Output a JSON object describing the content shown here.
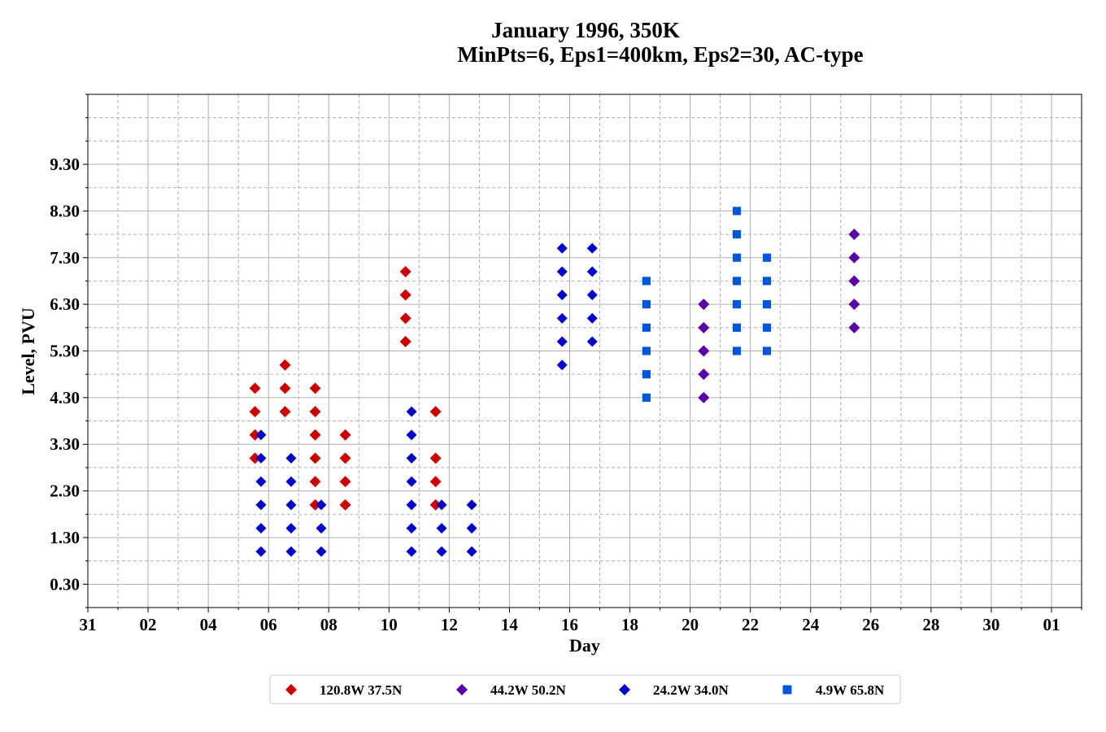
{
  "chart_data": {
    "type": "scatter",
    "title_lines": [
      "January 1996, 350K",
      "MinPts=6, Eps1=400km, Eps2=30, AC-type"
    ],
    "xlabel": "Day",
    "ylabel": "Level, PVU",
    "x_ticks": [
      {
        "day": 0,
        "label": "31"
      },
      {
        "day": 2,
        "label": "02"
      },
      {
        "day": 4,
        "label": "04"
      },
      {
        "day": 6,
        "label": "06"
      },
      {
        "day": 8,
        "label": "08"
      },
      {
        "day": 10,
        "label": "10"
      },
      {
        "day": 12,
        "label": "12"
      },
      {
        "day": 14,
        "label": "14"
      },
      {
        "day": 16,
        "label": "16"
      },
      {
        "day": 18,
        "label": "18"
      },
      {
        "day": 20,
        "label": "20"
      },
      {
        "day": 22,
        "label": "22"
      },
      {
        "day": 24,
        "label": "24"
      },
      {
        "day": 26,
        "label": "26"
      },
      {
        "day": 28,
        "label": "28"
      },
      {
        "day": 30,
        "label": "30"
      },
      {
        "day": 32,
        "label": "01"
      }
    ],
    "y_ticks": [
      0.3,
      1.3,
      2.3,
      3.3,
      4.3,
      5.3,
      6.3,
      7.3,
      8.3,
      9.3
    ],
    "y_tick_labels": [
      "0.30",
      "1.30",
      "2.30",
      "3.30",
      "4.30",
      "5.30",
      "6.30",
      "7.30",
      "8.30",
      "9.30"
    ],
    "xlim": [
      0,
      33
    ],
    "ylim": [
      -0.2,
      10.8
    ],
    "grid": true,
    "legend_position": "bottom-center",
    "series": [
      {
        "name": "120.8W 37.5N",
        "color": "#cc0000",
        "marker": "diamond",
        "points": [
          [
            5.55,
            4.5
          ],
          [
            5.55,
            4.0
          ],
          [
            5.55,
            3.5
          ],
          [
            5.55,
            3.0
          ],
          [
            6.55,
            5.0
          ],
          [
            6.55,
            4.5
          ],
          [
            6.55,
            4.0
          ],
          [
            7.55,
            4.5
          ],
          [
            7.55,
            4.0
          ],
          [
            7.55,
            3.5
          ],
          [
            7.55,
            3.0
          ],
          [
            7.55,
            2.5
          ],
          [
            7.55,
            2.0
          ],
          [
            8.55,
            3.5
          ],
          [
            8.55,
            3.0
          ],
          [
            8.55,
            2.5
          ],
          [
            8.55,
            2.0
          ],
          [
            10.55,
            7.0
          ],
          [
            10.55,
            6.5
          ],
          [
            10.55,
            6.0
          ],
          [
            10.55,
            5.5
          ],
          [
            11.55,
            4.0
          ],
          [
            11.55,
            3.0
          ],
          [
            11.55,
            2.5
          ],
          [
            11.55,
            2.0
          ]
        ]
      },
      {
        "name": "44.2W 50.2N",
        "color": "#5a00a8",
        "marker": "diamond",
        "points": [
          [
            20.45,
            6.3
          ],
          [
            20.45,
            5.8
          ],
          [
            20.45,
            5.3
          ],
          [
            20.45,
            4.8
          ],
          [
            20.45,
            4.3
          ],
          [
            25.45,
            7.8
          ],
          [
            25.45,
            7.3
          ],
          [
            25.45,
            6.8
          ],
          [
            25.45,
            6.3
          ],
          [
            25.45,
            5.8
          ]
        ]
      },
      {
        "name": "24.2W 34.0N",
        "color": "#0000cc",
        "marker": "diamond",
        "points": [
          [
            5.75,
            3.5
          ],
          [
            5.75,
            3.0
          ],
          [
            5.75,
            2.5
          ],
          [
            5.75,
            2.0
          ],
          [
            5.75,
            1.5
          ],
          [
            5.75,
            1.0
          ],
          [
            6.75,
            3.0
          ],
          [
            6.75,
            2.5
          ],
          [
            6.75,
            2.0
          ],
          [
            6.75,
            1.5
          ],
          [
            6.75,
            1.0
          ],
          [
            7.75,
            2.0
          ],
          [
            7.75,
            1.5
          ],
          [
            7.75,
            1.0
          ],
          [
            10.75,
            4.0
          ],
          [
            10.75,
            3.5
          ],
          [
            10.75,
            3.0
          ],
          [
            10.75,
            2.5
          ],
          [
            10.75,
            2.0
          ],
          [
            10.75,
            1.5
          ],
          [
            10.75,
            1.0
          ],
          [
            11.75,
            2.0
          ],
          [
            11.75,
            1.5
          ],
          [
            11.75,
            1.0
          ],
          [
            12.75,
            2.0
          ],
          [
            12.75,
            1.5
          ],
          [
            12.75,
            1.0
          ],
          [
            15.75,
            7.5
          ],
          [
            15.75,
            7.0
          ],
          [
            15.75,
            6.5
          ],
          [
            15.75,
            6.0
          ],
          [
            15.75,
            5.5
          ],
          [
            15.75,
            5.0
          ],
          [
            16.75,
            7.5
          ],
          [
            16.75,
            7.0
          ],
          [
            16.75,
            6.5
          ],
          [
            16.75,
            6.0
          ],
          [
            16.75,
            5.5
          ]
        ]
      },
      {
        "name": "4.9W 65.8N",
        "color": "#0055dd",
        "marker": "square",
        "points": [
          [
            18.55,
            6.8
          ],
          [
            18.55,
            6.3
          ],
          [
            18.55,
            5.8
          ],
          [
            18.55,
            5.3
          ],
          [
            18.55,
            4.8
          ],
          [
            18.55,
            4.3
          ],
          [
            21.55,
            8.3
          ],
          [
            21.55,
            7.8
          ],
          [
            21.55,
            7.3
          ],
          [
            21.55,
            6.8
          ],
          [
            21.55,
            6.3
          ],
          [
            21.55,
            5.8
          ],
          [
            21.55,
            5.3
          ],
          [
            22.55,
            7.3
          ],
          [
            22.55,
            6.8
          ],
          [
            22.55,
            6.3
          ],
          [
            22.55,
            5.8
          ],
          [
            22.55,
            5.3
          ]
        ]
      }
    ]
  }
}
